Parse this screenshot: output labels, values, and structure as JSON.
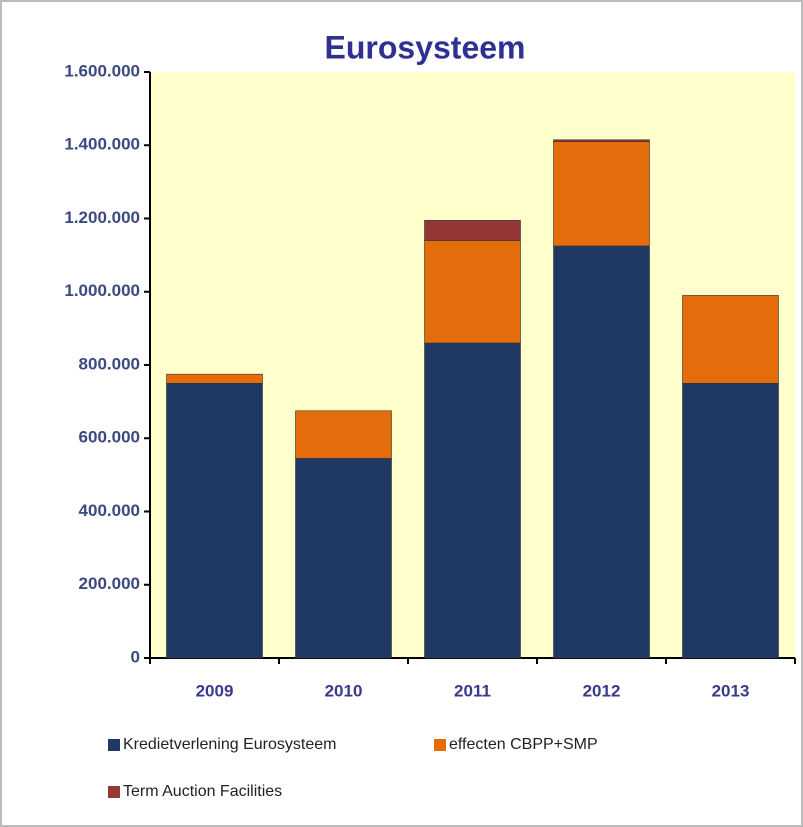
{
  "chart_data": {
    "type": "stacked_bar",
    "title": "Eurosysteem",
    "categories": [
      "2009",
      "2010",
      "2011",
      "2012",
      "2013"
    ],
    "series": [
      {
        "name": "Kredietverlening  Eurosysteem",
        "color": "#1f3864",
        "values": [
          750000,
          545000,
          860000,
          1125000,
          750000
        ]
      },
      {
        "name": "effecten CBPP+SMP",
        "color": "#e46c0a",
        "values": [
          25000,
          130000,
          280000,
          285000,
          240000
        ]
      },
      {
        "name": "Term Auction Facilities",
        "color": "#953735",
        "values": [
          0,
          0,
          55000,
          5000,
          0
        ]
      }
    ],
    "ylim": [
      0,
      1600000
    ],
    "yticks": [
      0,
      {
        "value": 200000,
        "label": "200.000"
      },
      {
        "value": 400000,
        "label": "400.000"
      },
      {
        "value": 600000,
        "label": "600.000"
      },
      {
        "value": 800000,
        "label": "800.000"
      },
      {
        "value": 1000000,
        "label": "1.000.000"
      },
      {
        "value": 1200000,
        "label": "1.200.000"
      },
      {
        "value": 1400000,
        "label": "1.400.000"
      },
      {
        "value": 1600000,
        "label": "1.600.000"
      }
    ]
  }
}
